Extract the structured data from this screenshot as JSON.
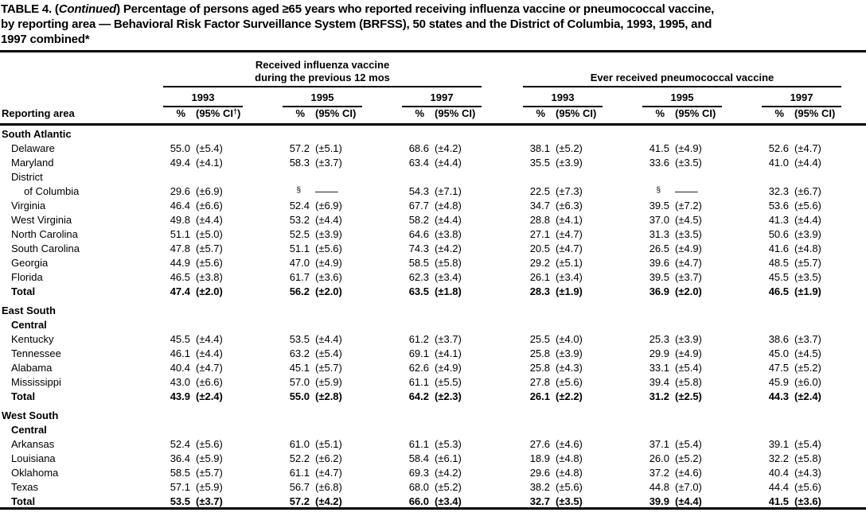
{
  "title": {
    "line1_pre": "TABLE 4. (",
    "line1_italic": "Continued",
    "line1_post": ") Percentage of persons aged ≥65 years who reported receiving influenza vaccine or pneumococcal vaccine,",
    "line2": "by reporting area — Behavioral Risk Factor Surveillance System (BRFSS), 50 states and the District of Columbia, 1993, 1995, and",
    "line3": "1997 combined*"
  },
  "header": {
    "reporting_area": "Reporting area",
    "flu_line1": "Received influenza vaccine",
    "flu_line2": "during the previous 12 mos",
    "pneumo": "Ever received pneumococcal vaccine",
    "years": [
      "1993",
      "1995",
      "1997"
    ],
    "pct": "%",
    "ci": "(95% CI)",
    "ci_first_pre": "(95% CI",
    "ci_first_marker": "†",
    "ci_first_post": ")"
  },
  "sections": [
    {
      "header_lines": [
        "South Atlantic"
      ],
      "rows": [
        {
          "label_lines": [
            "Delaware"
          ],
          "total": false,
          "values": [
            "55.0",
            "(±5.4)",
            "57.2",
            "(±5.1)",
            "68.6",
            "(±4.2)",
            "38.1",
            "(±5.2)",
            "41.5",
            "(±4.9)",
            "52.6",
            "(±4.7)"
          ]
        },
        {
          "label_lines": [
            "Maryland"
          ],
          "total": false,
          "values": [
            "49.4",
            "(±4.1)",
            "58.3",
            "(±3.7)",
            "63.4",
            "(±4.4)",
            "35.5",
            "(±3.9)",
            "33.6",
            "(±3.5)",
            "41.0",
            "(±4.4)"
          ]
        },
        {
          "label_lines": [
            "District",
            "of Columbia"
          ],
          "total": false,
          "values": [
            "29.6",
            "(±6.9)",
            "§",
            "—",
            "54.3",
            "(±7.1)",
            "22.5",
            "(±7.3)",
            "§",
            "—",
            "32.3",
            "(±6.7)"
          ]
        },
        {
          "label_lines": [
            "Virginia"
          ],
          "total": false,
          "values": [
            "46.4",
            "(±6.6)",
            "52.4",
            "(±6.9)",
            "67.7",
            "(±4.8)",
            "34.7",
            "(±6.3)",
            "39.5",
            "(±7.2)",
            "53.6",
            "(±5.6)"
          ]
        },
        {
          "label_lines": [
            "West Virginia"
          ],
          "total": false,
          "values": [
            "49.8",
            "(±4.4)",
            "53.2",
            "(±4.4)",
            "58.2",
            "(±4.4)",
            "28.8",
            "(±4.1)",
            "37.0",
            "(±4.5)",
            "41.3",
            "(±4.4)"
          ]
        },
        {
          "label_lines": [
            "North Carolina"
          ],
          "total": false,
          "values": [
            "51.1",
            "(±5.0)",
            "52.5",
            "(±3.9)",
            "64.6",
            "(±3.8)",
            "27.1",
            "(±4.7)",
            "31.3",
            "(±3.5)",
            "50.6",
            "(±3.9)"
          ]
        },
        {
          "label_lines": [
            "South Carolina"
          ],
          "total": false,
          "values": [
            "47.8",
            "(±5.7)",
            "51.1",
            "(±5.6)",
            "74.3",
            "(±4.2)",
            "20.5",
            "(±4.7)",
            "26.5",
            "(±4.9)",
            "41.6",
            "(±4.8)"
          ]
        },
        {
          "label_lines": [
            "Georgia"
          ],
          "total": false,
          "values": [
            "44.9",
            "(±5.6)",
            "47.0",
            "(±4.9)",
            "58.5",
            "(±5.8)",
            "29.2",
            "(±5.1)",
            "39.6",
            "(±4.7)",
            "48.5",
            "(±5.7)"
          ]
        },
        {
          "label_lines": [
            "Florida"
          ],
          "total": false,
          "values": [
            "46.5",
            "(±3.8)",
            "61.7",
            "(±3.6)",
            "62.3",
            "(±3.4)",
            "26.1",
            "(±3.4)",
            "39.5",
            "(±3.7)",
            "45.5",
            "(±3.5)"
          ]
        },
        {
          "label_lines": [
            "Total"
          ],
          "total": true,
          "values": [
            "47.4",
            "(±2.0)",
            "56.2",
            "(±2.0)",
            "63.5",
            "(±1.8)",
            "28.3",
            "(±1.9)",
            "36.9",
            "(±2.0)",
            "46.5",
            "(±1.9)"
          ]
        }
      ]
    },
    {
      "header_lines": [
        "East South",
        "Central"
      ],
      "rows": [
        {
          "label_lines": [
            "Kentucky"
          ],
          "total": false,
          "values": [
            "45.5",
            "(±4.4)",
            "53.5",
            "(±4.4)",
            "61.2",
            "(±3.7)",
            "25.5",
            "(±4.0)",
            "25.3",
            "(±3.9)",
            "38.6",
            "(±3.7)"
          ]
        },
        {
          "label_lines": [
            "Tennessee"
          ],
          "total": false,
          "values": [
            "46.1",
            "(±4.4)",
            "63.2",
            "(±5.4)",
            "69.1",
            "(±4.1)",
            "25.8",
            "(±3.9)",
            "29.9",
            "(±4.9)",
            "45.0",
            "(±4.5)"
          ]
        },
        {
          "label_lines": [
            "Alabama"
          ],
          "total": false,
          "values": [
            "40.4",
            "(±4.7)",
            "45.1",
            "(±5.7)",
            "62.6",
            "(±4.9)",
            "25.8",
            "(±4.3)",
            "33.1",
            "(±5.4)",
            "47.5",
            "(±5.2)"
          ]
        },
        {
          "label_lines": [
            "Mississippi"
          ],
          "total": false,
          "values": [
            "43.0",
            "(±6.6)",
            "57.0",
            "(±5.9)",
            "61.1",
            "(±5.5)",
            "27.8",
            "(±5.6)",
            "39.4",
            "(±5.8)",
            "45.9",
            "(±6.0)"
          ]
        },
        {
          "label_lines": [
            "Total"
          ],
          "total": true,
          "values": [
            "43.9",
            "(±2.4)",
            "55.0",
            "(±2.8)",
            "64.2",
            "(±2.3)",
            "26.1",
            "(±2.2)",
            "31.2",
            "(±2.5)",
            "44.3",
            "(±2.4)"
          ]
        }
      ]
    },
    {
      "header_lines": [
        "West South",
        "Central"
      ],
      "rows": [
        {
          "label_lines": [
            "Arkansas"
          ],
          "total": false,
          "values": [
            "52.4",
            "(±5.6)",
            "61.0",
            "(±5.1)",
            "61.1",
            "(±5.3)",
            "27.6",
            "(±4.6)",
            "37.1",
            "(±5.4)",
            "39.1",
            "(±5.4)"
          ]
        },
        {
          "label_lines": [
            "Louisiana"
          ],
          "total": false,
          "values": [
            "36.4",
            "(±5.9)",
            "52.2",
            "(±6.2)",
            "58.4",
            "(±6.1)",
            "18.9",
            "(±4.8)",
            "26.0",
            "(±5.2)",
            "32.2",
            "(±5.8)"
          ]
        },
        {
          "label_lines": [
            "Oklahoma"
          ],
          "total": false,
          "values": [
            "58.5",
            "(±5.7)",
            "61.1",
            "(±4.7)",
            "69.3",
            "(±4.2)",
            "29.6",
            "(±4.8)",
            "37.2",
            "(±4.6)",
            "40.4",
            "(±4.3)"
          ]
        },
        {
          "label_lines": [
            "Texas"
          ],
          "total": false,
          "values": [
            "57.1",
            "(±5.9)",
            "56.7",
            "(±6.8)",
            "68.0",
            "(±5.2)",
            "38.2",
            "(±5.6)",
            "44.8",
            "(±7.0)",
            "44.4",
            "(±5.6)"
          ]
        },
        {
          "label_lines": [
            "Total"
          ],
          "total": true,
          "values": [
            "53.5",
            "(±3.7)",
            "57.2",
            "(±4.2)",
            "66.0",
            "(±3.4)",
            "32.7",
            "(±3.5)",
            "39.9",
            "(±4.4)",
            "41.5",
            "(±3.6)"
          ]
        }
      ]
    }
  ]
}
